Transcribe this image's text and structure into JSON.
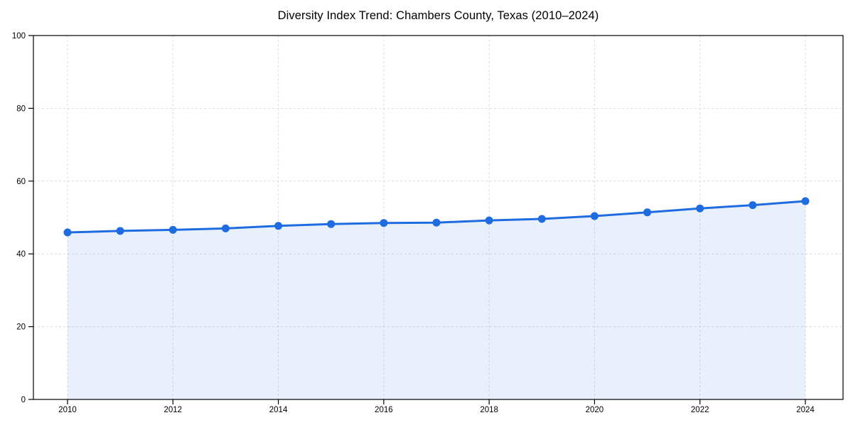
{
  "page": {
    "background_color": "#ffffff"
  },
  "chart_data": {
    "type": "area",
    "title": "Diversity Index Trend: Chambers County, Texas (2010–2024)",
    "series_name": "Diversity Index",
    "x": [
      2010,
      2011,
      2012,
      2013,
      2014,
      2015,
      2016,
      2017,
      2018,
      2019,
      2020,
      2021,
      2022,
      2023,
      2024
    ],
    "values": [
      45.9,
      46.3,
      46.6,
      47.0,
      47.7,
      48.2,
      48.5,
      48.6,
      49.2,
      49.6,
      50.4,
      51.4,
      52.5,
      53.4,
      54.5
    ],
    "xlabel": "",
    "ylabel": "",
    "xlim": [
      2010,
      2024
    ],
    "ylim": [
      0,
      100
    ],
    "xticks": [
      2010,
      2012,
      2014,
      2016,
      2018,
      2020,
      2022,
      2024
    ],
    "yticks": [
      0,
      20,
      40,
      60,
      80,
      100
    ],
    "grid": {
      "style": "dashed",
      "color": "#dcdcdc"
    },
    "legend": "none",
    "marker": "circle",
    "colors": {
      "line": "#1f6ce0",
      "marker": "#1f6ce0",
      "fill": "#1f6ce0",
      "fill_opacity": 0.1,
      "axis": "#000000",
      "text": "#000000"
    }
  }
}
